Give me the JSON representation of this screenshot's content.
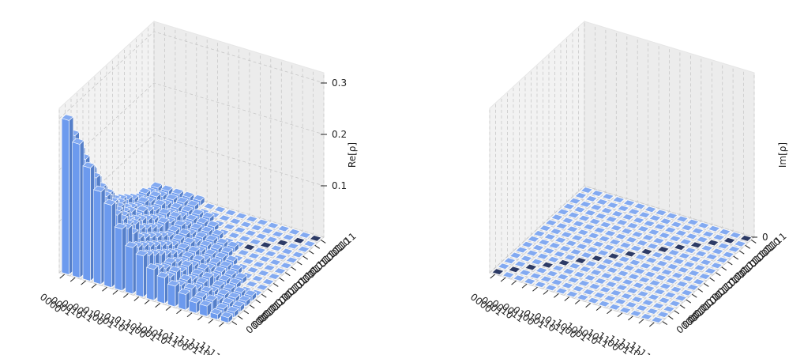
{
  "chart_data": [
    {
      "type": "bar3d",
      "zlabel": "Re[ρ]",
      "color": "#6495ed",
      "x_categories": [
        "0000",
        "0001",
        "0010",
        "0011",
        "0100",
        "0101",
        "0110",
        "0111",
        "1000",
        "1001",
        "1010",
        "1011",
        "1100",
        "1101",
        "1110",
        "1111"
      ],
      "y_categories": [
        "0000",
        "0001",
        "0010",
        "0011",
        "0100",
        "0101",
        "0110",
        "0111",
        "1000",
        "1001",
        "1010",
        "1011",
        "1100",
        "1101",
        "1110",
        "1111"
      ],
      "zlim": [
        0,
        0.32
      ],
      "zticks": [
        0.1,
        0.2,
        0.3
      ],
      "values": [
        [
          0.3,
          0.26,
          0.22,
          0.18,
          0.16,
          0.12,
          0.09,
          0.08,
          0.06,
          0.05,
          0.04,
          0.03,
          0.02,
          0.02,
          0.01,
          0.01
        ],
        [
          0.26,
          0.22,
          0.19,
          0.16,
          0.13,
          0.11,
          0.08,
          0.07,
          0.05,
          0.04,
          0.03,
          0.03,
          0.02,
          0.02,
          0.01,
          0.01
        ],
        [
          0.22,
          0.19,
          0.16,
          0.13,
          0.11,
          0.09,
          0.07,
          0.06,
          0.04,
          0.04,
          0.03,
          0.02,
          0.02,
          0.01,
          0.01,
          0.01
        ],
        [
          0.18,
          0.16,
          0.13,
          0.11,
          0.09,
          0.07,
          0.06,
          0.05,
          0.04,
          0.03,
          0.02,
          0.02,
          0.01,
          0.01,
          0.01,
          0.01
        ],
        [
          0.16,
          0.13,
          0.11,
          0.09,
          0.08,
          0.06,
          0.05,
          0.04,
          0.03,
          0.03,
          0.02,
          0.02,
          0.01,
          0.01,
          0.01,
          0.01
        ],
        [
          0.12,
          0.11,
          0.09,
          0.07,
          0.06,
          0.05,
          0.04,
          0.03,
          0.02,
          0.02,
          0.02,
          0.01,
          0.01,
          0.01,
          0,
          0
        ],
        [
          0.09,
          0.08,
          0.07,
          0.06,
          0.05,
          0.04,
          0.03,
          0.02,
          0.02,
          0.02,
          0.01,
          0.01,
          0.01,
          0.01,
          0,
          0
        ],
        [
          0.08,
          0.07,
          0.06,
          0.05,
          0.04,
          0.03,
          0.02,
          0.02,
          0.02,
          0.01,
          0.01,
          0.01,
          0.01,
          0,
          0,
          0
        ],
        [
          0.06,
          0.05,
          0.04,
          0.04,
          0.03,
          0.02,
          0.02,
          0.02,
          0.01,
          0.01,
          0.01,
          0.01,
          0,
          0,
          0,
          0
        ],
        [
          0.05,
          0.04,
          0.04,
          0.03,
          0.03,
          0.02,
          0.02,
          0.01,
          0.01,
          0.01,
          0.01,
          0,
          0,
          0,
          0,
          0
        ],
        [
          0.04,
          0.03,
          0.03,
          0.02,
          0.02,
          0.02,
          0.01,
          0.01,
          0.01,
          0.01,
          0.01,
          0,
          0,
          0,
          0,
          0
        ],
        [
          0.03,
          0.03,
          0.02,
          0.02,
          0.02,
          0.01,
          0.01,
          0.01,
          0.01,
          0,
          0,
          0,
          0,
          0,
          0,
          0
        ],
        [
          0.02,
          0.02,
          0.02,
          0.01,
          0.01,
          0.01,
          0.01,
          0.01,
          0,
          0,
          0,
          0,
          0,
          0,
          0,
          0
        ],
        [
          0.02,
          0.02,
          0.01,
          0.01,
          0.01,
          0.01,
          0.01,
          0,
          0,
          0,
          0,
          0,
          0,
          0,
          0,
          0
        ],
        [
          0.01,
          0.01,
          0.01,
          0.01,
          0.01,
          0,
          0,
          0,
          0,
          0,
          0,
          0,
          0,
          0,
          0,
          0
        ],
        [
          0.01,
          0.01,
          0.01,
          0.01,
          0.01,
          0,
          0,
          0,
          0,
          0,
          0,
          0,
          0,
          0,
          0,
          0
        ]
      ]
    },
    {
      "type": "bar3d",
      "zlabel": "Im[ρ]",
      "color": "#6495ed",
      "x_categories": [
        "0000",
        "0001",
        "0010",
        "0011",
        "0100",
        "0101",
        "0110",
        "0111",
        "1000",
        "1001",
        "1010",
        "1011",
        "1100",
        "1101",
        "1110",
        "1111"
      ],
      "y_categories": [
        "0000",
        "0001",
        "0010",
        "0011",
        "0100",
        "0101",
        "0110",
        "0111",
        "1000",
        "1001",
        "1010",
        "1011",
        "1100",
        "1101",
        "1110",
        "1111"
      ],
      "zlim": [
        0,
        0.32
      ],
      "zticks": [
        0
      ],
      "values": [
        [
          0,
          0,
          0,
          0,
          0,
          0,
          0,
          0,
          0,
          0,
          0,
          0,
          0,
          0,
          0,
          0
        ],
        [
          0,
          0,
          0,
          0,
          0,
          0,
          0,
          0,
          0,
          0,
          0,
          0,
          0,
          0,
          0,
          0
        ],
        [
          0,
          0,
          0,
          0,
          0,
          0,
          0,
          0,
          0,
          0,
          0,
          0,
          0,
          0,
          0,
          0
        ],
        [
          0,
          0,
          0,
          0,
          0,
          0,
          0,
          0,
          0,
          0,
          0,
          0,
          0,
          0,
          0,
          0
        ],
        [
          0,
          0,
          0,
          0,
          0,
          0,
          0,
          0,
          0,
          0,
          0,
          0,
          0,
          0,
          0,
          0
        ],
        [
          0,
          0,
          0,
          0,
          0,
          0,
          0,
          0,
          0,
          0,
          0,
          0,
          0,
          0,
          0,
          0
        ],
        [
          0,
          0,
          0,
          0,
          0,
          0,
          0,
          0,
          0,
          0,
          0,
          0,
          0,
          0,
          0,
          0
        ],
        [
          0,
          0,
          0,
          0,
          0,
          0,
          0,
          0,
          0,
          0,
          0,
          0,
          0,
          0,
          0,
          0
        ],
        [
          0,
          0,
          0,
          0,
          0,
          0,
          0,
          0,
          0,
          0,
          0,
          0,
          0,
          0,
          0,
          0
        ],
        [
          0,
          0,
          0,
          0,
          0,
          0,
          0,
          0,
          0,
          0,
          0,
          0,
          0,
          0,
          0,
          0
        ],
        [
          0,
          0,
          0,
          0,
          0,
          0,
          0,
          0,
          0,
          0,
          0,
          0,
          0,
          0,
          0,
          0
        ],
        [
          0,
          0,
          0,
          0,
          0,
          0,
          0,
          0,
          0,
          0,
          0,
          0,
          0,
          0,
          0,
          0
        ],
        [
          0,
          0,
          0,
          0,
          0,
          0,
          0,
          0,
          0,
          0,
          0,
          0,
          0,
          0,
          0,
          0
        ],
        [
          0,
          0,
          0,
          0,
          0,
          0,
          0,
          0,
          0,
          0,
          0,
          0,
          0,
          0,
          0,
          0
        ],
        [
          0,
          0,
          0,
          0,
          0,
          0,
          0,
          0,
          0,
          0,
          0,
          0,
          0,
          0,
          0,
          0
        ],
        [
          0,
          0,
          0,
          0,
          0,
          0,
          0,
          0,
          0,
          0,
          0,
          0,
          0,
          0,
          0,
          0
        ]
      ]
    }
  ]
}
